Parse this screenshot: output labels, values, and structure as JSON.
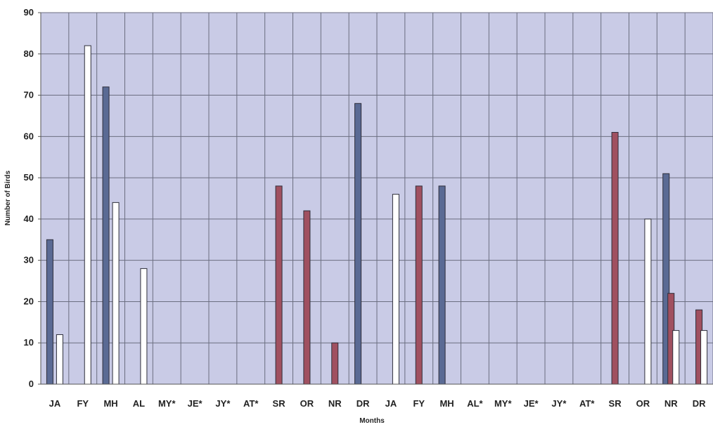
{
  "chart_data": {
    "type": "bar",
    "title": "",
    "xlabel": "Months",
    "ylabel": "Number of Birds",
    "ylim": [
      0,
      90
    ],
    "yticks": [
      0,
      10,
      20,
      30,
      40,
      50,
      60,
      70,
      80,
      90
    ],
    "grid": true,
    "legend": "none",
    "categories": [
      "JA",
      "FY",
      "MH",
      "AL",
      "MY*",
      "JE*",
      "JY*",
      "AT*",
      "SR",
      "OR",
      "NR",
      "DR",
      "JA",
      "FY",
      "MH",
      "AL*",
      "MY*",
      "JE*",
      "JY*",
      "AT*",
      "SR",
      "OR",
      "NR",
      "DR"
    ],
    "series": [
      {
        "color": "#5a6a94",
        "values": [
          35,
          0,
          72,
          0,
          0,
          0,
          0,
          0,
          0,
          0,
          0,
          68,
          0,
          0,
          48,
          0,
          0,
          0,
          0,
          0,
          0,
          0,
          51,
          0
        ]
      },
      {
        "color": "#a05060",
        "values": [
          0,
          0,
          0,
          0,
          0,
          0,
          0,
          0,
          48,
          42,
          10,
          0,
          0,
          48,
          0,
          0,
          0,
          0,
          0,
          0,
          61,
          0,
          22,
          18
        ]
      },
      {
        "color": "#ffffff",
        "values": [
          12,
          82,
          44,
          28,
          0,
          0,
          0,
          0,
          0,
          0,
          0,
          0,
          46,
          0,
          0,
          0,
          0,
          0,
          0,
          0,
          0,
          40,
          13,
          13
        ]
      }
    ]
  }
}
